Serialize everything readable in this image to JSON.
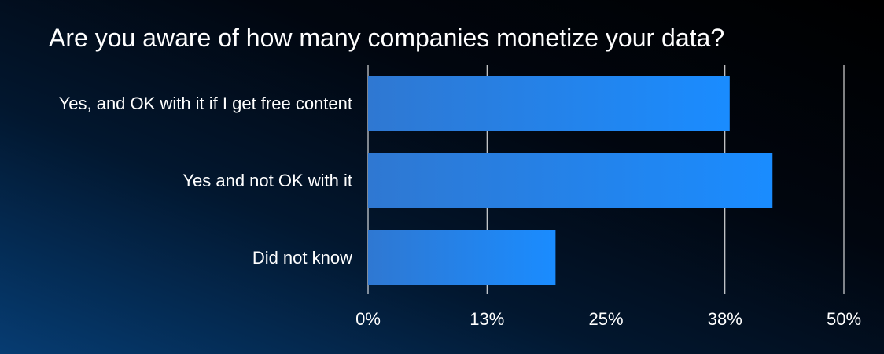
{
  "chart_data": {
    "type": "bar",
    "orientation": "horizontal",
    "title": "Are you aware of how many companies monetize your data?",
    "categories": [
      "Yes, and OK with it if I get free content",
      "Yes and not OK with it",
      "Did not know"
    ],
    "values": [
      0.38,
      0.425,
      0.197
    ],
    "xlim": [
      0,
      0.5
    ],
    "ticks": [
      0,
      0.125,
      0.25,
      0.375,
      0.5
    ],
    "tick_labels": [
      "0%",
      "13%",
      "25%",
      "38%",
      "50%"
    ],
    "xlabel": "",
    "ylabel": "",
    "grid": "vertical",
    "legend": "none",
    "colors": {
      "bar_start": "#2f78d2",
      "bar_end": "#1a8cff",
      "grid": "#ffffff",
      "text": "#ffffff"
    }
  }
}
